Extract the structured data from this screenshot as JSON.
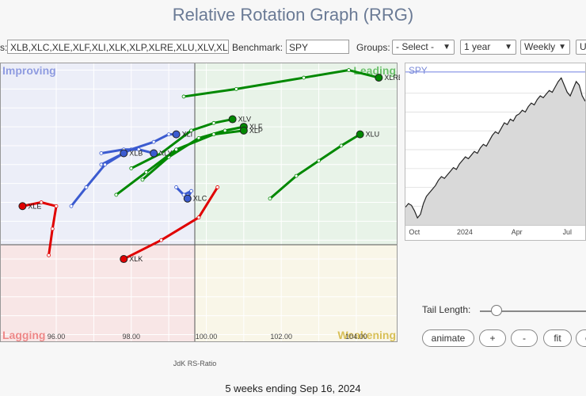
{
  "title": "Relative Rotation Graph (RRG)",
  "toolbar": {
    "symbols_label": "s:",
    "symbols_value": "XLB,XLC,XLE,XLF,XLI,XLK,XLP,XLRE,XLU,XLV,XL",
    "benchmark_label": "Benchmark:",
    "benchmark_value": "SPY",
    "groups_label": "Groups:",
    "groups_value": "- Select -",
    "period_value": "1 year",
    "frequency_value": "Weekly",
    "extra_button": "U"
  },
  "quadrants": {
    "improving": "Improving",
    "leading": "Leading",
    "lagging": "Lagging",
    "weakening": "Weakening"
  },
  "x_axis": {
    "label": "JdK RS-Ratio",
    "ticks": [
      "96.00",
      "98.00",
      "100.00",
      "102.00",
      "104.00"
    ]
  },
  "colors": {
    "leading": "#008800",
    "improving": "#3b5bd0",
    "lagging": "#e00000",
    "weakening": "#d4b800"
  },
  "chart_data": {
    "type": "scatter",
    "xlabel": "JdK RS-Ratio",
    "x_ticks": [
      "96.00",
      "98.00",
      "100.00",
      "102.00",
      "104.00"
    ],
    "xlim": [
      94.5,
      105.1
    ],
    "ylim": [
      95.8,
      103.2
    ],
    "series": [
      {
        "name": "XLRE",
        "color": "#008800",
        "points": [
          [
            99.4,
            102.3
          ],
          [
            100.8,
            102.5
          ],
          [
            102.6,
            102.8
          ],
          [
            103.8,
            103.0
          ],
          [
            104.6,
            102.8
          ]
        ]
      },
      {
        "name": "XLV",
        "color": "#008800",
        "points": [
          [
            98.0,
            100.4
          ],
          [
            98.8,
            100.8
          ],
          [
            99.6,
            101.4
          ],
          [
            100.2,
            101.6
          ],
          [
            100.7,
            101.7
          ]
        ]
      },
      {
        "name": "XLF",
        "color": "#008800",
        "points": [
          [
            98.3,
            100.1
          ],
          [
            99.0,
            100.7
          ],
          [
            99.8,
            101.2
          ],
          [
            100.5,
            101.4
          ],
          [
            101.0,
            101.5
          ]
        ]
      },
      {
        "name": "XLP",
        "color": "#008800",
        "points": [
          [
            97.6,
            99.7
          ],
          [
            98.4,
            100.3
          ],
          [
            99.2,
            100.9
          ],
          [
            100.2,
            101.3
          ],
          [
            101.0,
            101.4
          ]
        ]
      },
      {
        "name": "XLU",
        "color": "#008800",
        "points": [
          [
            101.7,
            99.6
          ],
          [
            102.4,
            100.2
          ],
          [
            103.0,
            100.6
          ],
          [
            103.6,
            101.0
          ],
          [
            104.1,
            101.3
          ]
        ]
      },
      {
        "name": "XLI",
        "color": "#3b5bd0",
        "points": [
          [
            97.2,
            100.5
          ],
          [
            98.0,
            100.9
          ],
          [
            98.6,
            101.1
          ],
          [
            99.0,
            101.3
          ],
          [
            99.2,
            101.3
          ]
        ]
      },
      {
        "name": "XLY",
        "color": "#3b5bd0",
        "points": [
          [
            97.2,
            100.8
          ],
          [
            97.8,
            100.9
          ],
          [
            98.2,
            100.9
          ],
          [
            98.6,
            100.8
          ]
        ]
      },
      {
        "name": "XLB",
        "color": "#3b5bd0",
        "points": [
          [
            96.4,
            99.4
          ],
          [
            96.8,
            99.9
          ],
          [
            97.3,
            100.5
          ],
          [
            97.8,
            100.8
          ]
        ]
      },
      {
        "name": "XLC",
        "color": "#3b5bd0",
        "points": [
          [
            99.2,
            99.9
          ],
          [
            99.4,
            99.7
          ],
          [
            99.6,
            99.8
          ],
          [
            99.5,
            99.6
          ]
        ]
      },
      {
        "name": "XLE",
        "color": "#e00000",
        "points": [
          [
            95.8,
            98.1
          ],
          [
            95.9,
            98.8
          ],
          [
            96.0,
            99.4
          ],
          [
            95.6,
            99.5
          ],
          [
            95.1,
            99.4
          ]
        ]
      },
      {
        "name": "XLK",
        "color": "#e00000",
        "points": [
          [
            100.3,
            99.9
          ],
          [
            99.8,
            99.1
          ],
          [
            98.8,
            98.5
          ],
          [
            97.8,
            98.0
          ]
        ]
      }
    ]
  },
  "spy_chart": {
    "label": "SPY",
    "x_ticks": [
      "Oct",
      "2024",
      "Apr",
      "Jul"
    ],
    "values": [
      78,
      80,
      79,
      76,
      72,
      74,
      80,
      84,
      86,
      88,
      90,
      93,
      95,
      94,
      96,
      98,
      100,
      99,
      102,
      104,
      106,
      105,
      107,
      109,
      108,
      111,
      113,
      112,
      115,
      118,
      120,
      119,
      122,
      125,
      124,
      127,
      126,
      129,
      130,
      132,
      131,
      134,
      136,
      135,
      138,
      140,
      139,
      141,
      143,
      142,
      145,
      148,
      150,
      146,
      142,
      140,
      144,
      148,
      146,
      140,
      137
    ]
  },
  "tail_label": "Tail Length:",
  "buttons": {
    "animate": "animate",
    "plus": "+",
    "minus": "-",
    "fit": "fit",
    "more": "c"
  },
  "footer": "5 weeks ending Sep 16, 2024"
}
